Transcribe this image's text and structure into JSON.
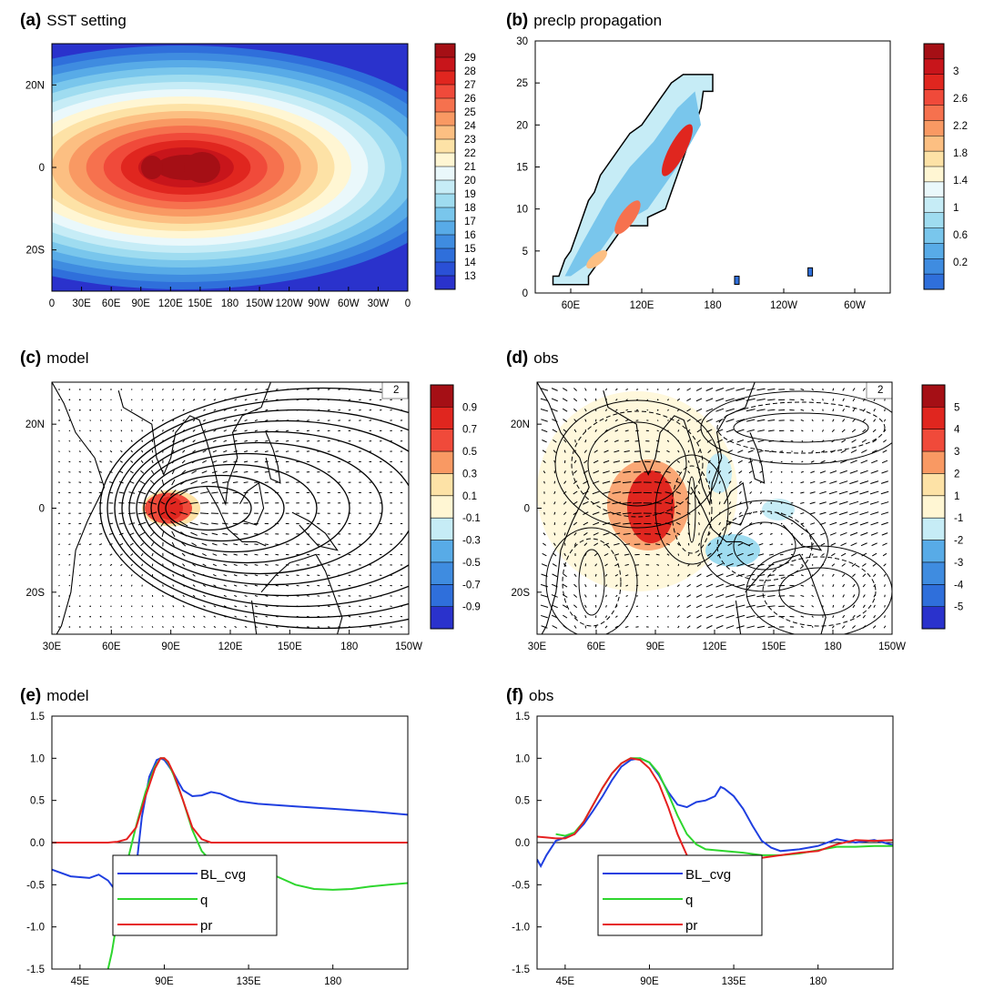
{
  "chart_data": [
    {
      "id": "a",
      "type": "heatmap",
      "tag": "(a)",
      "title": "SST setting",
      "xticks": [
        "0",
        "30E",
        "60E",
        "90E",
        "120E",
        "150E",
        "180",
        "150W",
        "120W",
        "90W",
        "60W",
        "30W",
        "0"
      ],
      "yticks": [
        "20N",
        "0",
        "20S"
      ],
      "colorbar": [
        "29",
        "28",
        "27",
        "26",
        "25",
        "24",
        "23",
        "22",
        "21",
        "20",
        "19",
        "18",
        "17",
        "16",
        "15",
        "14",
        "13"
      ],
      "field": "SST peaking near 29 at the equator with warm pools around 100E and 150E"
    },
    {
      "id": "b",
      "type": "heatmap",
      "tag": "(b)",
      "title": "preclp propagation",
      "xticks": [
        "60E",
        "120E",
        "180",
        "120W",
        "60W"
      ],
      "yticks": [
        "30",
        "25",
        "20",
        "15",
        "10",
        "5",
        "0"
      ],
      "colorbar": [
        "3",
        "2.6",
        "2.2",
        "1.8",
        "1.4",
        "1",
        "0.6",
        "0.2"
      ],
      "field": "diagonal precipitation band from about 45E at 1 to about 180 at 26, maximum near 150E"
    },
    {
      "id": "c",
      "type": "heatmap",
      "tag": "(c)",
      "title": "model",
      "xticks": [
        "30E",
        "60E",
        "90E",
        "120E",
        "150E",
        "180",
        "150W"
      ],
      "yticks": [
        "20N",
        "0",
        "20S"
      ],
      "colorbar": [
        "0.9",
        "0.7",
        "0.5",
        "0.3",
        "0.1",
        "-0.1",
        "-0.3",
        "-0.5",
        "-0.7",
        "-0.9"
      ],
      "vector_ref": "2",
      "field": "positive anomaly centred near 85E on the equator with contour rings"
    },
    {
      "id": "d",
      "type": "heatmap",
      "tag": "(d)",
      "title": "obs",
      "xticks": [
        "30E",
        "60E",
        "90E",
        "120E",
        "150E",
        "180",
        "150W"
      ],
      "yticks": [
        "20N",
        "0",
        "20S"
      ],
      "colorbar": [
        "5",
        "4",
        "3",
        "2",
        "1",
        "-1",
        "-2",
        "-3",
        "-4",
        "-5"
      ],
      "vector_ref": "2",
      "field": "positive anomaly near 85E and 0N, weak negative near 120E to 140E"
    },
    {
      "id": "e",
      "type": "line",
      "tag": "(e)",
      "title": "model",
      "xticks": [
        "45E",
        "90E",
        "135E",
        "180"
      ],
      "yticks": [
        "1.5",
        "1.0",
        "0.5",
        "0.0",
        "-0.5",
        "-1.0",
        "-1.5"
      ],
      "xlim": [
        30,
        220
      ],
      "ylim": [
        -1.5,
        1.5
      ],
      "series": [
        {
          "name": "BL_cvg",
          "color": "#1f3fe0",
          "x": [
            30,
            40,
            50,
            55,
            60,
            65,
            68,
            70,
            72,
            75,
            78,
            82,
            86,
            88,
            90,
            92,
            95,
            98,
            100,
            105,
            110,
            115,
            120,
            125,
            130,
            140,
            160,
            180,
            200,
            220
          ],
          "y": [
            -0.32,
            -0.4,
            -0.42,
            -0.38,
            -0.45,
            -0.6,
            -0.82,
            -1.0,
            -0.8,
            -0.3,
            0.3,
            0.78,
            0.98,
            1.0,
            0.98,
            0.92,
            0.82,
            0.7,
            0.62,
            0.55,
            0.56,
            0.6,
            0.58,
            0.53,
            0.49,
            0.46,
            0.43,
            0.4,
            0.37,
            0.33
          ]
        },
        {
          "name": "q",
          "color": "#2ed62e",
          "x": [
            60,
            62,
            65,
            68,
            70,
            75,
            80,
            85,
            88,
            90,
            92,
            95,
            100,
            105,
            110,
            115,
            120,
            125,
            130,
            135,
            140,
            150,
            160,
            170,
            180,
            190,
            200,
            210,
            220
          ],
          "y": [
            -1.5,
            -1.3,
            -0.9,
            -0.5,
            -0.25,
            0.2,
            0.6,
            0.9,
            1.0,
            1.0,
            0.95,
            0.8,
            0.5,
            0.15,
            -0.1,
            -0.22,
            -0.24,
            -0.2,
            -0.18,
            -0.22,
            -0.3,
            -0.4,
            -0.5,
            -0.55,
            -0.56,
            -0.55,
            -0.52,
            -0.5,
            -0.48
          ]
        },
        {
          "name": "pr",
          "color": "#e62020",
          "x": [
            30,
            60,
            65,
            70,
            75,
            80,
            85,
            88,
            90,
            92,
            95,
            100,
            105,
            110,
            115,
            220
          ],
          "y": [
            0.0,
            0.0,
            0.01,
            0.04,
            0.18,
            0.55,
            0.88,
            1.0,
            1.0,
            0.96,
            0.82,
            0.5,
            0.18,
            0.04,
            0.0,
            0.0
          ]
        }
      ]
    },
    {
      "id": "f",
      "type": "line",
      "tag": "(f)",
      "title": "obs",
      "xticks": [
        "45E",
        "90E",
        "135E",
        "180"
      ],
      "yticks": [
        "1.5",
        "1.0",
        "0.5",
        "0.0",
        "-0.5",
        "-1.0",
        "-1.5"
      ],
      "xlim": [
        30,
        220
      ],
      "ylim": [
        -1.5,
        1.5
      ],
      "series": [
        {
          "name": "BL_cvg",
          "color": "#1f3fe0",
          "x": [
            30,
            32,
            35,
            40,
            45,
            50,
            55,
            60,
            65,
            70,
            75,
            80,
            85,
            90,
            95,
            100,
            105,
            110,
            115,
            120,
            125,
            128,
            130,
            135,
            140,
            145,
            150,
            155,
            160,
            170,
            180,
            190,
            200,
            210,
            220
          ],
          "y": [
            -0.2,
            -0.28,
            -0.15,
            0.02,
            0.06,
            0.1,
            0.22,
            0.38,
            0.55,
            0.74,
            0.9,
            0.98,
            1.0,
            0.95,
            0.8,
            0.6,
            0.45,
            0.42,
            0.48,
            0.5,
            0.55,
            0.66,
            0.64,
            0.55,
            0.4,
            0.2,
            0.02,
            -0.06,
            -0.1,
            -0.08,
            -0.04,
            0.04,
            0.0,
            0.03,
            -0.03
          ]
        },
        {
          "name": "q",
          "color": "#2ed62e",
          "x": [
            40,
            45,
            50,
            55,
            60,
            65,
            70,
            75,
            80,
            85,
            90,
            95,
            100,
            105,
            110,
            115,
            120,
            130,
            140,
            150,
            160,
            170,
            180,
            190,
            200,
            210,
            220
          ],
          "y": [
            0.1,
            0.08,
            0.12,
            0.25,
            0.45,
            0.65,
            0.82,
            0.94,
            1.0,
            1.0,
            0.95,
            0.82,
            0.58,
            0.32,
            0.1,
            -0.02,
            -0.08,
            -0.1,
            -0.12,
            -0.15,
            -0.15,
            -0.13,
            -0.09,
            -0.05,
            -0.05,
            -0.04,
            -0.04
          ]
        },
        {
          "name": "pr",
          "color": "#e62020",
          "x": [
            30,
            35,
            40,
            45,
            50,
            55,
            60,
            65,
            70,
            75,
            80,
            85,
            90,
            95,
            100,
            105,
            110,
            115,
            120,
            125,
            130,
            140,
            150,
            160,
            170,
            180,
            190,
            200,
            210,
            220
          ],
          "y": [
            0.07,
            0.06,
            0.05,
            0.05,
            0.1,
            0.25,
            0.45,
            0.65,
            0.82,
            0.94,
            1.0,
            0.98,
            0.88,
            0.7,
            0.42,
            0.1,
            -0.15,
            -0.25,
            -0.22,
            -0.2,
            -0.22,
            -0.2,
            -0.18,
            -0.15,
            -0.12,
            -0.1,
            -0.02,
            0.03,
            0.02,
            0.03
          ]
        }
      ]
    }
  ]
}
